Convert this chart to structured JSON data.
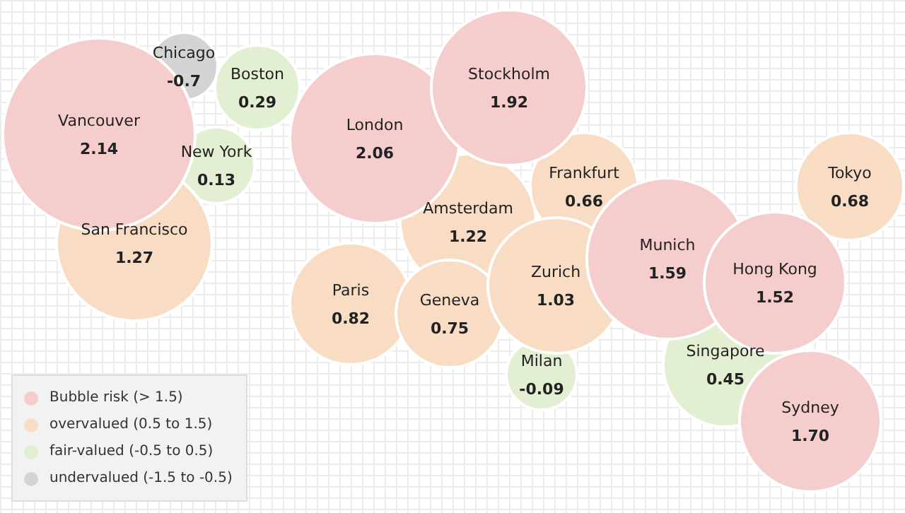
{
  "chart_data": {
    "type": "other",
    "categories": [
      "Vancouver",
      "Chicago",
      "Boston",
      "New York",
      "San Francisco",
      "London",
      "Stockholm",
      "Amsterdam",
      "Frankfurt",
      "Paris",
      "Geneva",
      "Zurich",
      "Milan",
      "Munich",
      "Tokyo",
      "Hong Kong",
      "Singapore",
      "Sydney"
    ],
    "series": [
      {
        "name": "Bubble risk (> 1.5)",
        "color": "#f5cdcc",
        "values": [
          2.14,
          null,
          null,
          null,
          null,
          2.06,
          1.92,
          null,
          null,
          null,
          null,
          null,
          null,
          1.59,
          null,
          1.52,
          null,
          1.7
        ],
        "value_labels": [
          "2.14",
          null,
          null,
          null,
          null,
          "2.06",
          "1.92",
          null,
          null,
          null,
          null,
          null,
          null,
          "1.59",
          null,
          "1.52",
          null,
          "1.70"
        ]
      },
      {
        "name": "overvalued (0.5 to 1.5)",
        "color": "#f8ddc4",
        "values": [
          null,
          null,
          null,
          null,
          1.27,
          null,
          null,
          1.22,
          0.66,
          0.82,
          0.75,
          1.03,
          null,
          null,
          0.68,
          null,
          null,
          null
        ]
      },
      {
        "name": "fair-valued (-0.5 to 0.5)",
        "color": "#e3efd2",
        "values": [
          null,
          null,
          0.29,
          0.13,
          null,
          null,
          null,
          null,
          null,
          null,
          null,
          null,
          -0.09,
          null,
          null,
          null,
          0.45,
          null
        ]
      },
      {
        "name": "undervalued (-1.5 to -0.5)",
        "color": "#d4d4d4",
        "values": [
          null,
          -0.7,
          null,
          null,
          null,
          null,
          null,
          null,
          null,
          null,
          null,
          null,
          null,
          null,
          null,
          null,
          null,
          null
        ]
      }
    ],
    "data_labels": true,
    "legend": "bottom left"
  }
}
